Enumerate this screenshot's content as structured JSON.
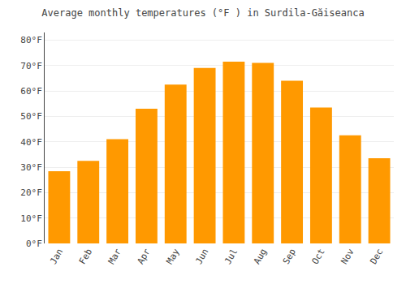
{
  "chart_data": {
    "type": "bar",
    "title": "Average monthly temperatures (°F ) in Surdila-Găiseanca",
    "categories": [
      "Jan",
      "Feb",
      "Mar",
      "Apr",
      "May",
      "Jun",
      "Jul",
      "Aug",
      "Sep",
      "Oct",
      "Nov",
      "Dec"
    ],
    "values": [
      28.4,
      32.5,
      41.0,
      53.0,
      62.5,
      69.0,
      71.5,
      71.0,
      64.0,
      53.5,
      42.5,
      33.5
    ],
    "color": "#FF9900",
    "ylim": [
      0,
      83
    ],
    "yticks": [
      {
        "value": 0,
        "label": "0°F"
      },
      {
        "value": 10,
        "label": "10°F"
      },
      {
        "value": 20,
        "label": "20°F"
      },
      {
        "value": 30,
        "label": "30°F"
      },
      {
        "value": 40,
        "label": "40°F"
      },
      {
        "value": 50,
        "label": "50°F"
      },
      {
        "value": 60,
        "label": "60°F"
      },
      {
        "value": 70,
        "label": "70°F"
      },
      {
        "value": 80,
        "label": "80°F"
      }
    ],
    "grid": true
  }
}
